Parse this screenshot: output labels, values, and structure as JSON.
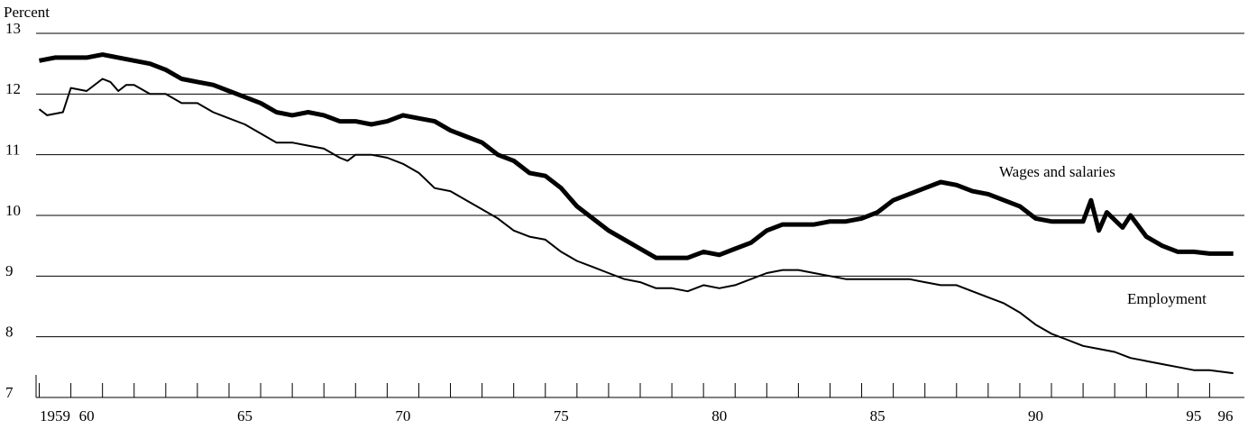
{
  "chart_data": {
    "type": "line",
    "y_label": "Percent",
    "annotations": [
      "Wages and salaries",
      "Employment"
    ],
    "xlim": [
      1958.9,
      1997.1
    ],
    "xticks": [
      {
        "value": 1959.5,
        "label": "1959"
      },
      {
        "value": 1960.5,
        "label": "60"
      },
      {
        "value": 1965.5,
        "label": "65"
      },
      {
        "value": 1970.5,
        "label": "70"
      },
      {
        "value": 1975.5,
        "label": "75"
      },
      {
        "value": 1980.5,
        "label": "80"
      },
      {
        "value": 1985.5,
        "label": "85"
      },
      {
        "value": 1990.5,
        "label": "90"
      },
      {
        "value": 1995.5,
        "label": "95"
      },
      {
        "value": 1996.5,
        "label": "96"
      }
    ],
    "xminorticks": [
      1959,
      1960,
      1961,
      1962,
      1963,
      1964,
      1965,
      1966,
      1967,
      1968,
      1969,
      1970,
      1971,
      1972,
      1973,
      1974,
      1975,
      1976,
      1977,
      1978,
      1979,
      1980,
      1981,
      1982,
      1983,
      1984,
      1985,
      1986,
      1987,
      1988,
      1989,
      1990,
      1991,
      1992,
      1993,
      1994,
      1995,
      1996
    ],
    "ylim": [
      7,
      13
    ],
    "yticks": [
      7,
      8,
      9,
      10,
      11,
      12,
      13
    ],
    "grid": true,
    "series": [
      {
        "name": "Wages and salaries",
        "color": "#000000",
        "width": 5,
        "x": [
          1959.0,
          1959.5,
          1960.0,
          1960.5,
          1961.0,
          1961.5,
          1962.0,
          1962.5,
          1963.0,
          1963.5,
          1964.0,
          1964.5,
          1965.0,
          1965.5,
          1966.0,
          1966.5,
          1967.0,
          1967.5,
          1968.0,
          1968.5,
          1969.0,
          1969.5,
          1970.0,
          1970.5,
          1971.0,
          1971.5,
          1972.0,
          1972.5,
          1973.0,
          1973.5,
          1974.0,
          1974.5,
          1975.0,
          1975.5,
          1976.0,
          1976.5,
          1977.0,
          1977.5,
          1978.0,
          1978.5,
          1979.0,
          1979.5,
          1980.0,
          1980.5,
          1981.0,
          1981.5,
          1982.0,
          1982.5,
          1983.0,
          1983.5,
          1984.0,
          1984.5,
          1985.0,
          1985.5,
          1986.0,
          1986.5,
          1987.0,
          1987.5,
          1988.0,
          1988.5,
          1989.0,
          1989.5,
          1990.0,
          1990.5,
          1991.0,
          1991.5,
          1992.0,
          1992.25,
          1992.5,
          1992.75,
          1993.25,
          1993.5,
          1994.0,
          1994.5,
          1995.0,
          1995.5,
          1996.0,
          1996.75
        ],
        "values": [
          12.55,
          12.6,
          12.6,
          12.6,
          12.65,
          12.6,
          12.55,
          12.5,
          12.4,
          12.25,
          12.2,
          12.15,
          12.05,
          11.95,
          11.85,
          11.7,
          11.65,
          11.7,
          11.65,
          11.55,
          11.55,
          11.5,
          11.55,
          11.65,
          11.6,
          11.55,
          11.4,
          11.3,
          11.2,
          11.0,
          10.9,
          10.7,
          10.65,
          10.45,
          10.15,
          9.95,
          9.75,
          9.6,
          9.45,
          9.3,
          9.3,
          9.3,
          9.4,
          9.35,
          9.45,
          9.55,
          9.75,
          9.85,
          9.85,
          9.85,
          9.9,
          9.9,
          9.95,
          10.05,
          10.25,
          10.35,
          10.45,
          10.55,
          10.5,
          10.4,
          10.35,
          10.25,
          10.15,
          9.95,
          9.9,
          9.9,
          9.9,
          10.25,
          9.75,
          10.05,
          9.8,
          10.0,
          9.65,
          9.5,
          9.4,
          9.4,
          9.37,
          9.37
        ]
      },
      {
        "name": "Employment",
        "color": "#000000",
        "width": 2,
        "x": [
          1959.0,
          1959.25,
          1959.75,
          1960.0,
          1960.5,
          1961.0,
          1961.25,
          1961.5,
          1961.75,
          1962.0,
          1962.5,
          1963.0,
          1963.5,
          1964.0,
          1964.5,
          1965.0,
          1965.5,
          1966.0,
          1966.5,
          1967.0,
          1967.5,
          1968.0,
          1968.5,
          1968.75,
          1969.0,
          1969.5,
          1970.0,
          1970.5,
          1971.0,
          1971.5,
          1972.0,
          1972.5,
          1973.0,
          1973.5,
          1974.0,
          1974.5,
          1975.0,
          1975.5,
          1976.0,
          1976.5,
          1977.0,
          1977.5,
          1978.0,
          1978.5,
          1979.0,
          1979.5,
          1980.0,
          1980.5,
          1981.0,
          1981.5,
          1982.0,
          1982.5,
          1983.0,
          1983.5,
          1984.0,
          1984.5,
          1985.0,
          1985.5,
          1986.0,
          1986.5,
          1987.0,
          1987.5,
          1988.0,
          1988.5,
          1989.0,
          1989.5,
          1990.0,
          1990.5,
          1991.0,
          1991.5,
          1992.0,
          1992.5,
          1993.0,
          1993.5,
          1994.0,
          1994.5,
          1995.0,
          1995.5,
          1996.0,
          1996.75
        ],
        "values": [
          11.75,
          11.65,
          11.7,
          12.1,
          12.05,
          12.25,
          12.2,
          12.05,
          12.15,
          12.15,
          12.0,
          12.0,
          11.85,
          11.85,
          11.7,
          11.6,
          11.5,
          11.35,
          11.2,
          11.2,
          11.15,
          11.1,
          10.95,
          10.9,
          11.0,
          11.0,
          10.95,
          10.85,
          10.7,
          10.45,
          10.4,
          10.25,
          10.1,
          9.95,
          9.75,
          9.65,
          9.6,
          9.4,
          9.25,
          9.15,
          9.05,
          8.95,
          8.9,
          8.8,
          8.8,
          8.75,
          8.85,
          8.8,
          8.85,
          8.95,
          9.05,
          9.1,
          9.1,
          9.05,
          9.0,
          8.95,
          8.95,
          8.95,
          8.95,
          8.95,
          8.9,
          8.85,
          8.85,
          8.75,
          8.65,
          8.55,
          8.4,
          8.2,
          8.05,
          7.95,
          7.85,
          7.8,
          7.75,
          7.65,
          7.6,
          7.55,
          7.5,
          7.45,
          7.45,
          7.4
        ]
      }
    ]
  }
}
